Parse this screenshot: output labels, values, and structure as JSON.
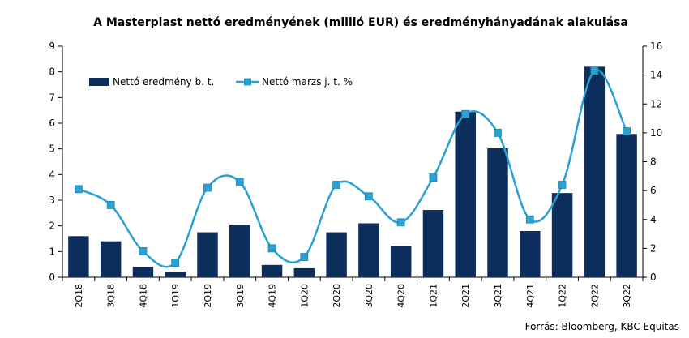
{
  "chart_data": {
    "type": "bar",
    "title": "A Masterplast nettó eredményének (millió EUR) és eredményhányadának alakulása",
    "categories": [
      "2Q18",
      "3Q18",
      "4Q18",
      "1Q19",
      "2Q19",
      "3Q19",
      "4Q19",
      "1Q20",
      "2Q20",
      "3Q20",
      "4Q20",
      "1Q21",
      "2Q21",
      "3Q21",
      "4Q21",
      "1Q22",
      "2Q22",
      "3Q22"
    ],
    "series": [
      {
        "name": "Nettó eredmény b. t.",
        "type": "bar",
        "axis": "left",
        "color": "#0b2e5c",
        "values": [
          1.6,
          1.4,
          0.4,
          0.22,
          1.75,
          2.05,
          0.48,
          0.35,
          1.75,
          2.1,
          1.22,
          2.62,
          6.45,
          5.02,
          1.8,
          3.28,
          8.2,
          5.58
        ]
      },
      {
        "name": "Nettó marzs j. t. %",
        "type": "line",
        "axis": "right",
        "color": "#2aa1d3",
        "values": [
          6.1,
          5.0,
          1.8,
          1.0,
          6.2,
          6.6,
          2.0,
          1.4,
          6.4,
          5.6,
          3.8,
          6.9,
          11.3,
          10.0,
          4.0,
          6.4,
          14.3,
          10.1
        ]
      }
    ],
    "y_left": {
      "min": 0,
      "max": 9,
      "ticks": [
        0,
        1,
        2,
        3,
        4,
        5,
        6,
        7,
        8,
        9
      ]
    },
    "y_right": {
      "min": 0,
      "max": 16,
      "ticks": [
        0,
        2,
        4,
        6,
        8,
        10,
        12,
        14,
        16
      ]
    },
    "legend_position": "top-left",
    "grid": false
  },
  "source": "Forrás: Bloomberg,  KBC Equitas"
}
